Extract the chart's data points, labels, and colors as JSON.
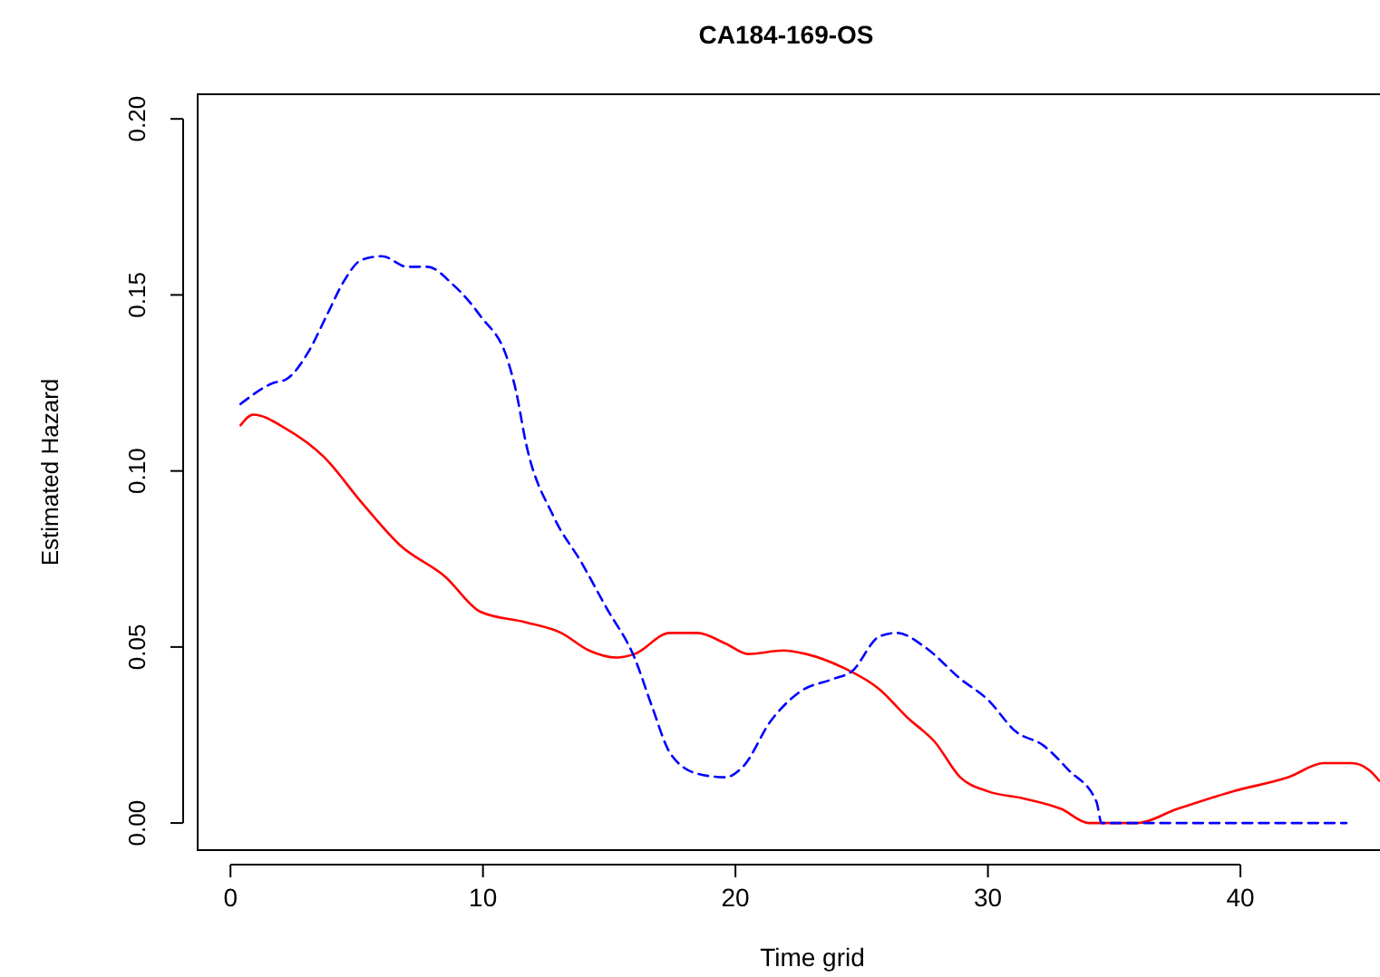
{
  "chart_data": {
    "type": "line",
    "title": "CA184-169-OS",
    "xlabel": "Time grid",
    "ylabel": "Estimated Hazard",
    "xlim": [
      -1.3,
      45.6
    ],
    "ylim": [
      -0.0077,
      0.207
    ],
    "xticks": [
      0,
      10,
      20,
      30,
      40
    ],
    "yticks": [
      {
        "value": 0,
        "label": "0.00"
      },
      {
        "value": 0.05,
        "label": "0.05"
      },
      {
        "value": 0.1,
        "label": "0.10"
      },
      {
        "value": 0.15,
        "label": "0.15"
      },
      {
        "value": 0.2,
        "label": "0.20"
      }
    ],
    "grid": false,
    "series": [
      {
        "color": "#ff0000",
        "line_style": "solid",
        "x": [
          0.4,
          0.9,
          2.2,
          3.7,
          5.2,
          6.7,
          8.5,
          9.9,
          11.7,
          13.1,
          14.2,
          15.3,
          16.0,
          17.4,
          18.5,
          19.6,
          20.5,
          21.9,
          22.8,
          24.3,
          25.7,
          26.8,
          27.9,
          28.9,
          30.0,
          31.4,
          32.9,
          34.0,
          35.9,
          37.5,
          39.7,
          41.9,
          43.3,
          44.4,
          45.1,
          45.5
        ],
        "values": [
          0.113,
          0.116,
          0.112,
          0.104,
          0.091,
          0.079,
          0.07,
          0.06,
          0.057,
          0.054,
          0.049,
          0.047,
          0.048,
          0.054,
          0.054,
          0.051,
          0.048,
          0.049,
          0.048,
          0.044,
          0.038,
          0.03,
          0.023,
          0.013,
          0.009,
          0.007,
          0.004,
          0,
          0,
          0.004,
          0.009,
          0.013,
          0.017,
          0.017,
          0.015,
          0.012
        ]
      },
      {
        "color": "#0000ff",
        "line_style": "dashed",
        "x": [
          0.4,
          1.7,
          2.2,
          3.1,
          3.8,
          4.5,
          5.2,
          6.0,
          7.0,
          7.8,
          8.8,
          9.9,
          11.0,
          11.3,
          11.7,
          12.8,
          13.9,
          14.9,
          16.0,
          16.7,
          17.4,
          18.5,
          19.6,
          20.3,
          21.4,
          22.5,
          23.9,
          24.6,
          25.7,
          26.4,
          27.5,
          28.9,
          30.0,
          31.1,
          32.2,
          33.2,
          34.3,
          34.5,
          36.8,
          44.2
        ],
        "values": [
          0.119,
          0.125,
          0.126,
          0.134,
          0.144,
          0.154,
          0.16,
          0.161,
          0.158,
          0.158,
          0.153,
          0.144,
          0.131,
          0.123,
          0.108,
          0.087,
          0.074,
          0.061,
          0.047,
          0.033,
          0.02,
          0.014,
          0.013,
          0.016,
          0.029,
          0.037,
          0.041,
          0.043,
          0.053,
          0.054,
          0.05,
          0.041,
          0.035,
          0.026,
          0.022,
          0.015,
          0.006,
          0,
          0,
          0
        ]
      }
    ]
  }
}
